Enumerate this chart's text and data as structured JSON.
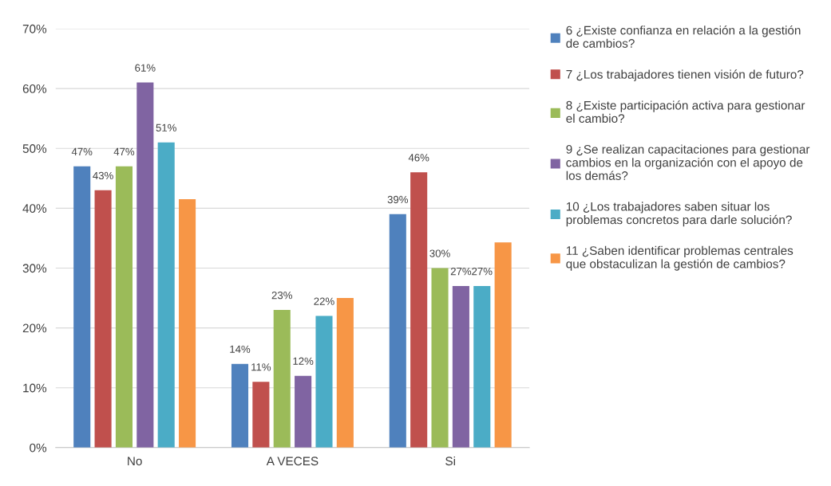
{
  "chart_data": {
    "type": "bar",
    "categories": [
      "No",
      "A VECES",
      "Si"
    ],
    "series": [
      {
        "name": "6 ¿Existe confianza en relación a la gestión\nde cambios?",
        "color": "#4f81bd",
        "values": [
          47,
          14,
          39
        ],
        "value_labels": [
          "47%",
          "14%",
          "39%"
        ]
      },
      {
        "name": "7 ¿Los trabajadores tienen visión de futuro?",
        "color": "#c0504d",
        "values": [
          43,
          11,
          46
        ],
        "value_labels": [
          "43%",
          "11%",
          "46%"
        ]
      },
      {
        "name": "8 ¿Existe participación activa para gestionar\nel cambio?",
        "color": "#9bbb59",
        "values": [
          47,
          23,
          30
        ],
        "value_labels": [
          "47%",
          "23%",
          "30%"
        ]
      },
      {
        "name": "9 ¿Se realizan capacitaciones para gestionar\ncambios en la organización con el apoyo de\nlos demás?",
        "color": "#8064a2",
        "values": [
          61,
          12,
          27
        ],
        "value_labels": [
          "61%",
          "12%",
          "27%"
        ]
      },
      {
        "name": "10 ¿Los trabajadores saben situar los\nproblemas concretos para darle solución?",
        "color": "#4bacc6",
        "values": [
          51,
          22,
          27
        ],
        "value_labels": [
          "51%",
          "22%",
          "27%"
        ]
      },
      {
        "name": "11 ¿Saben identificar problemas centrales\nque obstaculizan la gestión de cambios?",
        "color": "#f79646",
        "values": [
          41.5,
          25,
          34.3
        ]
      }
    ],
    "ylim": [
      0,
      70
    ],
    "yticks": [
      {
        "value": 0,
        "label": "0%"
      },
      {
        "value": 10,
        "label": "10%"
      },
      {
        "value": 20,
        "label": "20%"
      },
      {
        "value": 30,
        "label": "30%"
      },
      {
        "value": 40,
        "label": "40%"
      },
      {
        "value": 50,
        "label": "50%"
      },
      {
        "value": 60,
        "label": "60%"
      },
      {
        "value": 70,
        "label": "70%"
      }
    ],
    "grid": "y",
    "legend": "right"
  }
}
